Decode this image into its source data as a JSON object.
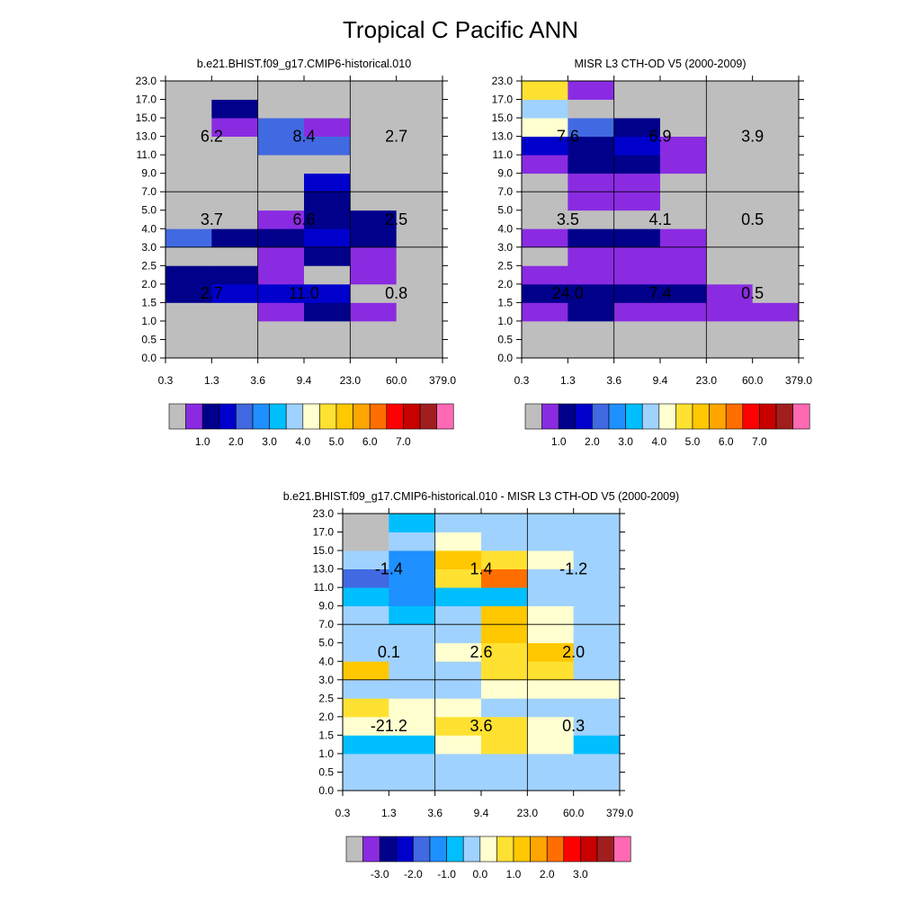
{
  "title": "Tropical C Pacific ANN",
  "x_ticks": [
    "0.3",
    "1.3",
    "3.6",
    "9.4",
    "23.0",
    "60.0",
    "379.0"
  ],
  "y_ticks": [
    "0.0",
    "0.5",
    "1.0",
    "1.5",
    "2.0",
    "2.5",
    "3.0",
    "4.0",
    "5.0",
    "7.0",
    "9.0",
    "11.0",
    "13.0",
    "15.0",
    "17.0",
    "23.0"
  ],
  "palette": [
    "#bebebe",
    "#8a2be2",
    "#00008b",
    "#0000cd",
    "#4169e1",
    "#1e90ff",
    "#00bfff",
    "#a0d2ff",
    "#ffffd0",
    "#ffe132",
    "#ffc800",
    "#ffa500",
    "#ff6e00",
    "#ff0000",
    "#c80000",
    "#a01e1e",
    "#ff69b4"
  ],
  "colorbars": {
    "abs": [
      "1.0",
      "2.0",
      "3.0",
      "4.0",
      "5.0",
      "6.0",
      "7.0"
    ],
    "diff": [
      "-3.0",
      "-2.0",
      "-1.0",
      "0.0",
      "1.0",
      "2.0",
      "3.0"
    ]
  },
  "chart_data": [
    {
      "type": "heatmap",
      "title": "b.e21.BHIST.f09_g17.CMIP6-historical.010",
      "x_edges": [
        "0.3",
        "1.3",
        "3.6",
        "9.4",
        "23.0",
        "60.0",
        "379.0"
      ],
      "y_edges": [
        "0.0",
        "0.5",
        "1.0",
        "1.5",
        "2.0",
        "2.5",
        "3.0",
        "4.0",
        "5.0",
        "7.0",
        "9.0",
        "11.0",
        "13.0",
        "15.0",
        "17.0",
        "23.0"
      ],
      "color_index_grid": [
        [
          0,
          0,
          0,
          0,
          0,
          0
        ],
        [
          0,
          0,
          0,
          0,
          0,
          0
        ],
        [
          0,
          0,
          1,
          2,
          1,
          0
        ],
        [
          2,
          3,
          3,
          3,
          0,
          0
        ],
        [
          2,
          2,
          1,
          0,
          1,
          0
        ],
        [
          0,
          0,
          1,
          2,
          1,
          0
        ],
        [
          4,
          2,
          2,
          3,
          2,
          0
        ],
        [
          0,
          0,
          1,
          2,
          2,
          0
        ],
        [
          0,
          0,
          0,
          2,
          0,
          0
        ],
        [
          0,
          0,
          0,
          3,
          0,
          0
        ],
        [
          0,
          0,
          0,
          0,
          0,
          0
        ],
        [
          0,
          0,
          4,
          4,
          0,
          0
        ],
        [
          0,
          1,
          4,
          1,
          0,
          0
        ],
        [
          0,
          2,
          0,
          0,
          0,
          0
        ],
        [
          0,
          0,
          0,
          0,
          0,
          0
        ]
      ],
      "region_values": [
        [
          {
            "label": "6.2"
          },
          {
            "label": "8.4"
          },
          {
            "label": "2.7"
          }
        ],
        [
          {
            "label": "3.7"
          },
          {
            "label": "6.6"
          },
          {
            "label": "2.5"
          }
        ],
        [
          {
            "label": "2.7"
          },
          {
            "label": "11.0"
          },
          {
            "label": "0.8"
          }
        ]
      ],
      "colorbar": "abs"
    },
    {
      "type": "heatmap",
      "title": "MISR L3 CTH-OD V5 (2000-2009)",
      "x_edges": [
        "0.3",
        "1.3",
        "3.6",
        "9.4",
        "23.0",
        "60.0",
        "379.0"
      ],
      "y_edges": [
        "0.0",
        "0.5",
        "1.0",
        "1.5",
        "2.0",
        "2.5",
        "3.0",
        "4.0",
        "5.0",
        "7.0",
        "9.0",
        "11.0",
        "13.0",
        "15.0",
        "17.0",
        "23.0"
      ],
      "color_index_grid": [
        [
          0,
          0,
          0,
          0,
          0,
          0
        ],
        [
          0,
          0,
          0,
          0,
          0,
          0
        ],
        [
          1,
          2,
          1,
          1,
          1,
          1
        ],
        [
          2,
          2,
          2,
          2,
          1,
          0
        ],
        [
          1,
          1,
          1,
          1,
          0,
          0
        ],
        [
          0,
          1,
          1,
          1,
          0,
          0
        ],
        [
          1,
          2,
          2,
          1,
          0,
          0
        ],
        [
          0,
          0,
          0,
          0,
          0,
          0
        ],
        [
          0,
          1,
          1,
          0,
          0,
          0
        ],
        [
          0,
          1,
          1,
          0,
          0,
          0
        ],
        [
          1,
          2,
          2,
          1,
          0,
          0
        ],
        [
          3,
          2,
          3,
          1,
          0,
          0
        ],
        [
          8,
          4,
          2,
          0,
          0,
          0
        ],
        [
          7,
          0,
          0,
          0,
          0,
          0
        ],
        [
          9,
          1,
          0,
          0,
          0,
          0
        ]
      ],
      "region_values": [
        [
          {
            "label": "7.6"
          },
          {
            "label": "6.9"
          },
          {
            "label": "3.9"
          }
        ],
        [
          {
            "label": "3.5"
          },
          {
            "label": "4.1"
          },
          {
            "label": "0.5"
          }
        ],
        [
          {
            "label": "24.0"
          },
          {
            "label": "7.4"
          },
          {
            "label": "0.5"
          }
        ]
      ],
      "colorbar": "abs"
    },
    {
      "type": "heatmap",
      "title": "b.e21.BHIST.f09_g17.CMIP6-historical.010 - MISR L3 CTH-OD V5 (2000-2009)",
      "x_edges": [
        "0.3",
        "1.3",
        "3.6",
        "9.4",
        "23.0",
        "60.0",
        "379.0"
      ],
      "y_edges": [
        "0.0",
        "0.5",
        "1.0",
        "1.5",
        "2.0",
        "2.5",
        "3.0",
        "4.0",
        "5.0",
        "7.0",
        "9.0",
        "11.0",
        "13.0",
        "15.0",
        "17.0",
        "23.0"
      ],
      "color_index_grid": [
        [
          7,
          7,
          7,
          7,
          7,
          7
        ],
        [
          7,
          7,
          7,
          7,
          7,
          7
        ],
        [
          6,
          6,
          8,
          9,
          8,
          6
        ],
        [
          8,
          8,
          9,
          9,
          8,
          7
        ],
        [
          9,
          8,
          8,
          7,
          7,
          7
        ],
        [
          7,
          7,
          7,
          8,
          8,
          8
        ],
        [
          10,
          7,
          7,
          9,
          9,
          7
        ],
        [
          7,
          7,
          8,
          9,
          10,
          7
        ],
        [
          7,
          7,
          7,
          10,
          8,
          7
        ],
        [
          7,
          6,
          7,
          10,
          8,
          7
        ],
        [
          6,
          5,
          6,
          6,
          7,
          7
        ],
        [
          4,
          5,
          9,
          12,
          7,
          7
        ],
        [
          7,
          5,
          10,
          9,
          8,
          7
        ],
        [
          0,
          7,
          8,
          7,
          7,
          7
        ],
        [
          0,
          6,
          7,
          7,
          7,
          7
        ]
      ],
      "region_values": [
        [
          {
            "label": "-1.4"
          },
          {
            "label": "1.4"
          },
          {
            "label": "-1.2"
          }
        ],
        [
          {
            "label": "0.1"
          },
          {
            "label": "2.6"
          },
          {
            "label": "2.0"
          }
        ],
        [
          {
            "label": "-21.2"
          },
          {
            "label": "3.6"
          },
          {
            "label": "0.3"
          }
        ]
      ],
      "colorbar": "diff"
    }
  ]
}
